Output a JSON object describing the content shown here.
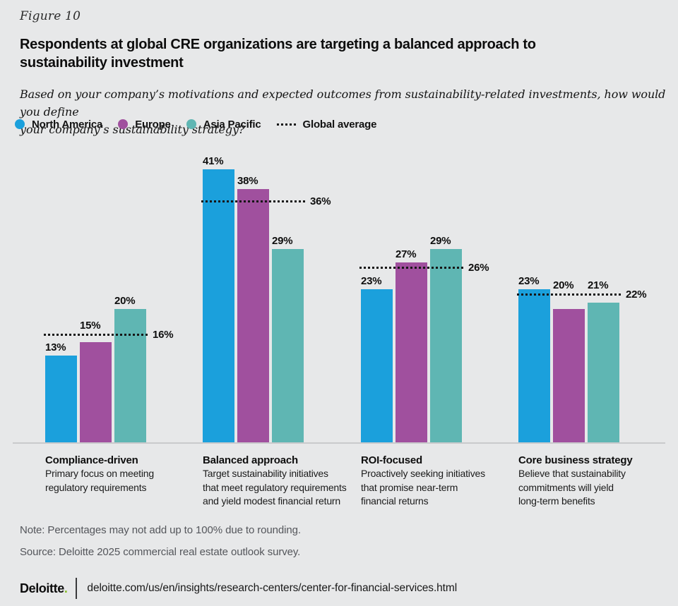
{
  "figure_label": "Figure 10",
  "title": "Respondents at global CRE organizations are targeting a balanced approach to\nsustainability investment",
  "subtitle": "Based on your company’s motivations and expected outcomes from sustainability-related investments, how would you define\nyour company’s sustainability strategy?",
  "legend": [
    {
      "label": "North America",
      "type": "dot",
      "color": "#1BA0DC"
    },
    {
      "label": "Europe",
      "type": "dot",
      "color": "#A0509E"
    },
    {
      "label": "Asia Pacific",
      "type": "dot",
      "color": "#5FB6B3"
    },
    {
      "label": "Global average",
      "type": "dotted-line",
      "color": "#161616"
    }
  ],
  "chart_data": {
    "type": "bar",
    "title": "Respondents at global CRE organizations are targeting a balanced approach to sustainability investment",
    "categories": [
      {
        "name": "Compliance-driven",
        "description": "Primary focus on meeting\nregulatory requirements"
      },
      {
        "name": "Balanced approach",
        "description": "Target sustainability initiatives\nthat meet regulatory requirements\nand yield modest financial return"
      },
      {
        "name": "ROI-focused",
        "description": "Proactively seeking initiatives\nthat promise near-term\nfinancial returns"
      },
      {
        "name": "Core business strategy",
        "description": "Believe that sustainability\ncommitments will yield\nlong-term benefits"
      }
    ],
    "series": [
      {
        "name": "North America",
        "color": "#1BA0DC",
        "values": [
          13,
          41,
          23,
          23
        ]
      },
      {
        "name": "Europe",
        "color": "#A0509E",
        "values": [
          15,
          38,
          27,
          20
        ]
      },
      {
        "name": "Asia Pacific",
        "color": "#5FB6B3",
        "values": [
          20,
          29,
          29,
          21
        ]
      }
    ],
    "global_average": {
      "name": "Global average",
      "style": "dotted",
      "color": "#161616",
      "values": [
        16,
        36,
        26,
        22
      ]
    },
    "value_suffix": "%",
    "ylim": [
      0,
      45
    ],
    "grid": false,
    "legend_position": "top",
    "xlabel": "",
    "ylabel": ""
  },
  "note": "Note: Percentages may not add up to 100% due to rounding.",
  "source": "Source: Deloitte 2025 commercial real estate outlook survey.",
  "footer": {
    "brand": "Deloitte",
    "brand_dot": ".",
    "url": "deloitte.com/us/en/insights/research-centers/center-for-financial-services.html"
  },
  "colors": {
    "background": "#E7E8E9",
    "north_america": "#1BA0DC",
    "europe": "#A0509E",
    "asia_pacific": "#5FB6B3",
    "global_average_line": "#161616",
    "axis_line": "#C9CACC",
    "note_text": "#54565B",
    "deloitte_green": "#86BC25"
  }
}
